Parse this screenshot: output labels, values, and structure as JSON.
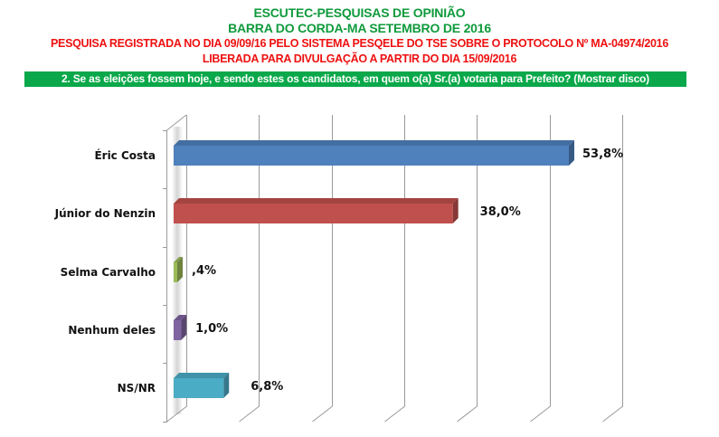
{
  "header": {
    "title": "ESCUTEC-PESQUISAS DE OPINIÃO",
    "subtitle": "BARRA DO CORDA-MA SETEMBRO DE 2016",
    "registration": "PESQUISA REGISTRADA NO DIA 09/09/16 PELO SISTEMA PESQELE DO TSE SOBRE O PROTOCOLO Nº MA-04974/2016",
    "release": "LIBERADA PARA DIVULGAÇÃO A PARTIR DO DIA 15/09/2016"
  },
  "question": "2. Se as eleições fossem hoje, e sendo estes os candidatos, em quem o(a) Sr.(a) votaria para Prefeito? (Mostrar disco)",
  "colors": {
    "title_green": "#0f9a3c",
    "red_text": "#ee1111",
    "banner_green": "#0aa84a"
  },
  "chart_data": {
    "type": "bar",
    "orientation": "horizontal",
    "style": "3d",
    "title": "2. Se as eleições fossem hoje, e sendo estes os candidatos, em quem o(a) Sr.(a) votaria para Prefeito? (Mostrar disco)",
    "xlabel": "",
    "ylabel": "",
    "categories": [
      "Éric Costa",
      "Júnior do Nenzin",
      "Selma Carvalho",
      "Nenhum deles",
      "NS/NR"
    ],
    "values": [
      53.8,
      38.0,
      0.4,
      1.0,
      6.8
    ],
    "value_labels": [
      "53,8%",
      "38,0%",
      ",4%",
      "1,0%",
      "6,8%"
    ],
    "bar_colors": [
      "#4f81bd",
      "#c0504d",
      "#9bbb59",
      "#8064a2",
      "#4bacc6"
    ],
    "xlim": [
      0,
      60
    ],
    "grid": true,
    "legend": false
  }
}
